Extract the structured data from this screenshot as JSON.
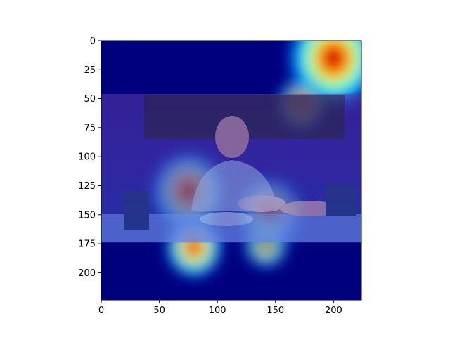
{
  "chart_data": {
    "type": "heatmap",
    "title": "",
    "xlabel": "",
    "ylabel": "",
    "xlim": [
      0,
      224
    ],
    "ylim": [
      224,
      0
    ],
    "x_ticks": [
      0,
      50,
      100,
      150,
      200
    ],
    "y_ticks": [
      0,
      25,
      50,
      75,
      100,
      125,
      150,
      175,
      200
    ],
    "colormap": "jet",
    "hot_spots": [
      {
        "x": 200,
        "y": 15,
        "intensity": 1.0,
        "spread": 42
      },
      {
        "x": 172,
        "y": 55,
        "intensity": 0.6,
        "spread": 22
      },
      {
        "x": 80,
        "y": 178,
        "intensity": 1.0,
        "spread": 26
      },
      {
        "x": 142,
        "y": 175,
        "intensity": 0.85,
        "spread": 20
      },
      {
        "x": 75,
        "y": 130,
        "intensity": 0.55,
        "spread": 34
      },
      {
        "x": 145,
        "y": 148,
        "intensity": 0.35,
        "spread": 30
      }
    ],
    "photo_overlay_extent": {
      "y": [
        46,
        174
      ]
    }
  }
}
